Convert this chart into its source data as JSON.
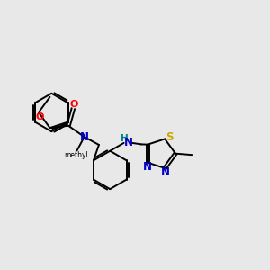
{
  "background_color": "#e8e8e8",
  "bond_color": "#000000",
  "bond_width": 1.4,
  "figsize": [
    3.0,
    3.0
  ],
  "dpi": 100,
  "colors": {
    "O": "#ff0000",
    "N": "#0000cc",
    "S": "#ccaa00",
    "NH": "#008080",
    "C": "#000000"
  }
}
